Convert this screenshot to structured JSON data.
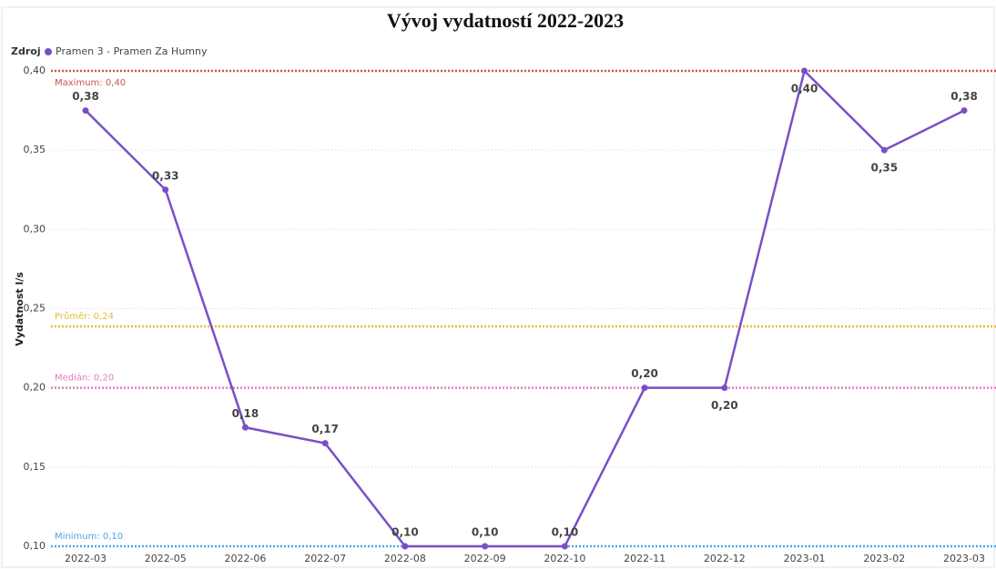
{
  "chart_data": {
    "type": "line",
    "title": "Vývoj vydatností 2022-2023",
    "legend_title": "Zdroj",
    "ylabel": "Vydatnost l/s",
    "categories": [
      "2022-03",
      "2022-05",
      "2022-06",
      "2022-07",
      "2022-08",
      "2022-09",
      "2022-10",
      "2022-11",
      "2022-12",
      "2023-01",
      "2023-02",
      "2023-03"
    ],
    "series": [
      {
        "name": "Pramen 3 - Pramen Za Humny",
        "color": "#7a4fc6",
        "values": [
          0.375,
          0.325,
          0.175,
          0.165,
          0.1,
          0.1,
          0.1,
          0.2,
          0.2,
          0.4,
          0.35,
          0.375
        ],
        "value_labels": [
          "0,38",
          "0,33",
          "0,18",
          "0,17",
          "0,10",
          "0,10",
          "0,10",
          "0,20",
          "0,20",
          "0,40",
          "0,35",
          "0,38"
        ]
      }
    ],
    "ylim": [
      0.1,
      0.4
    ],
    "yticks": [
      {
        "value": 0.1,
        "label": "0,10"
      },
      {
        "value": 0.15,
        "label": "0,15"
      },
      {
        "value": 0.2,
        "label": "0,20"
      },
      {
        "value": 0.25,
        "label": "0,25"
      },
      {
        "value": 0.3,
        "label": "0,30"
      },
      {
        "value": 0.35,
        "label": "0,35"
      },
      {
        "value": 0.4,
        "label": "0,40"
      }
    ],
    "grid": true,
    "reference_lines": [
      {
        "label": "Maximum: 0,40",
        "value": 0.4,
        "color": "#c4574f"
      },
      {
        "label": "Průměr: 0,24",
        "value": 0.23875,
        "color": "#e3bd3c"
      },
      {
        "label": "Medián: 0,20",
        "value": 0.2,
        "color": "#e67bbf"
      },
      {
        "label": "Minimum: 0,10",
        "value": 0.1,
        "color": "#4ea6e6"
      }
    ]
  }
}
